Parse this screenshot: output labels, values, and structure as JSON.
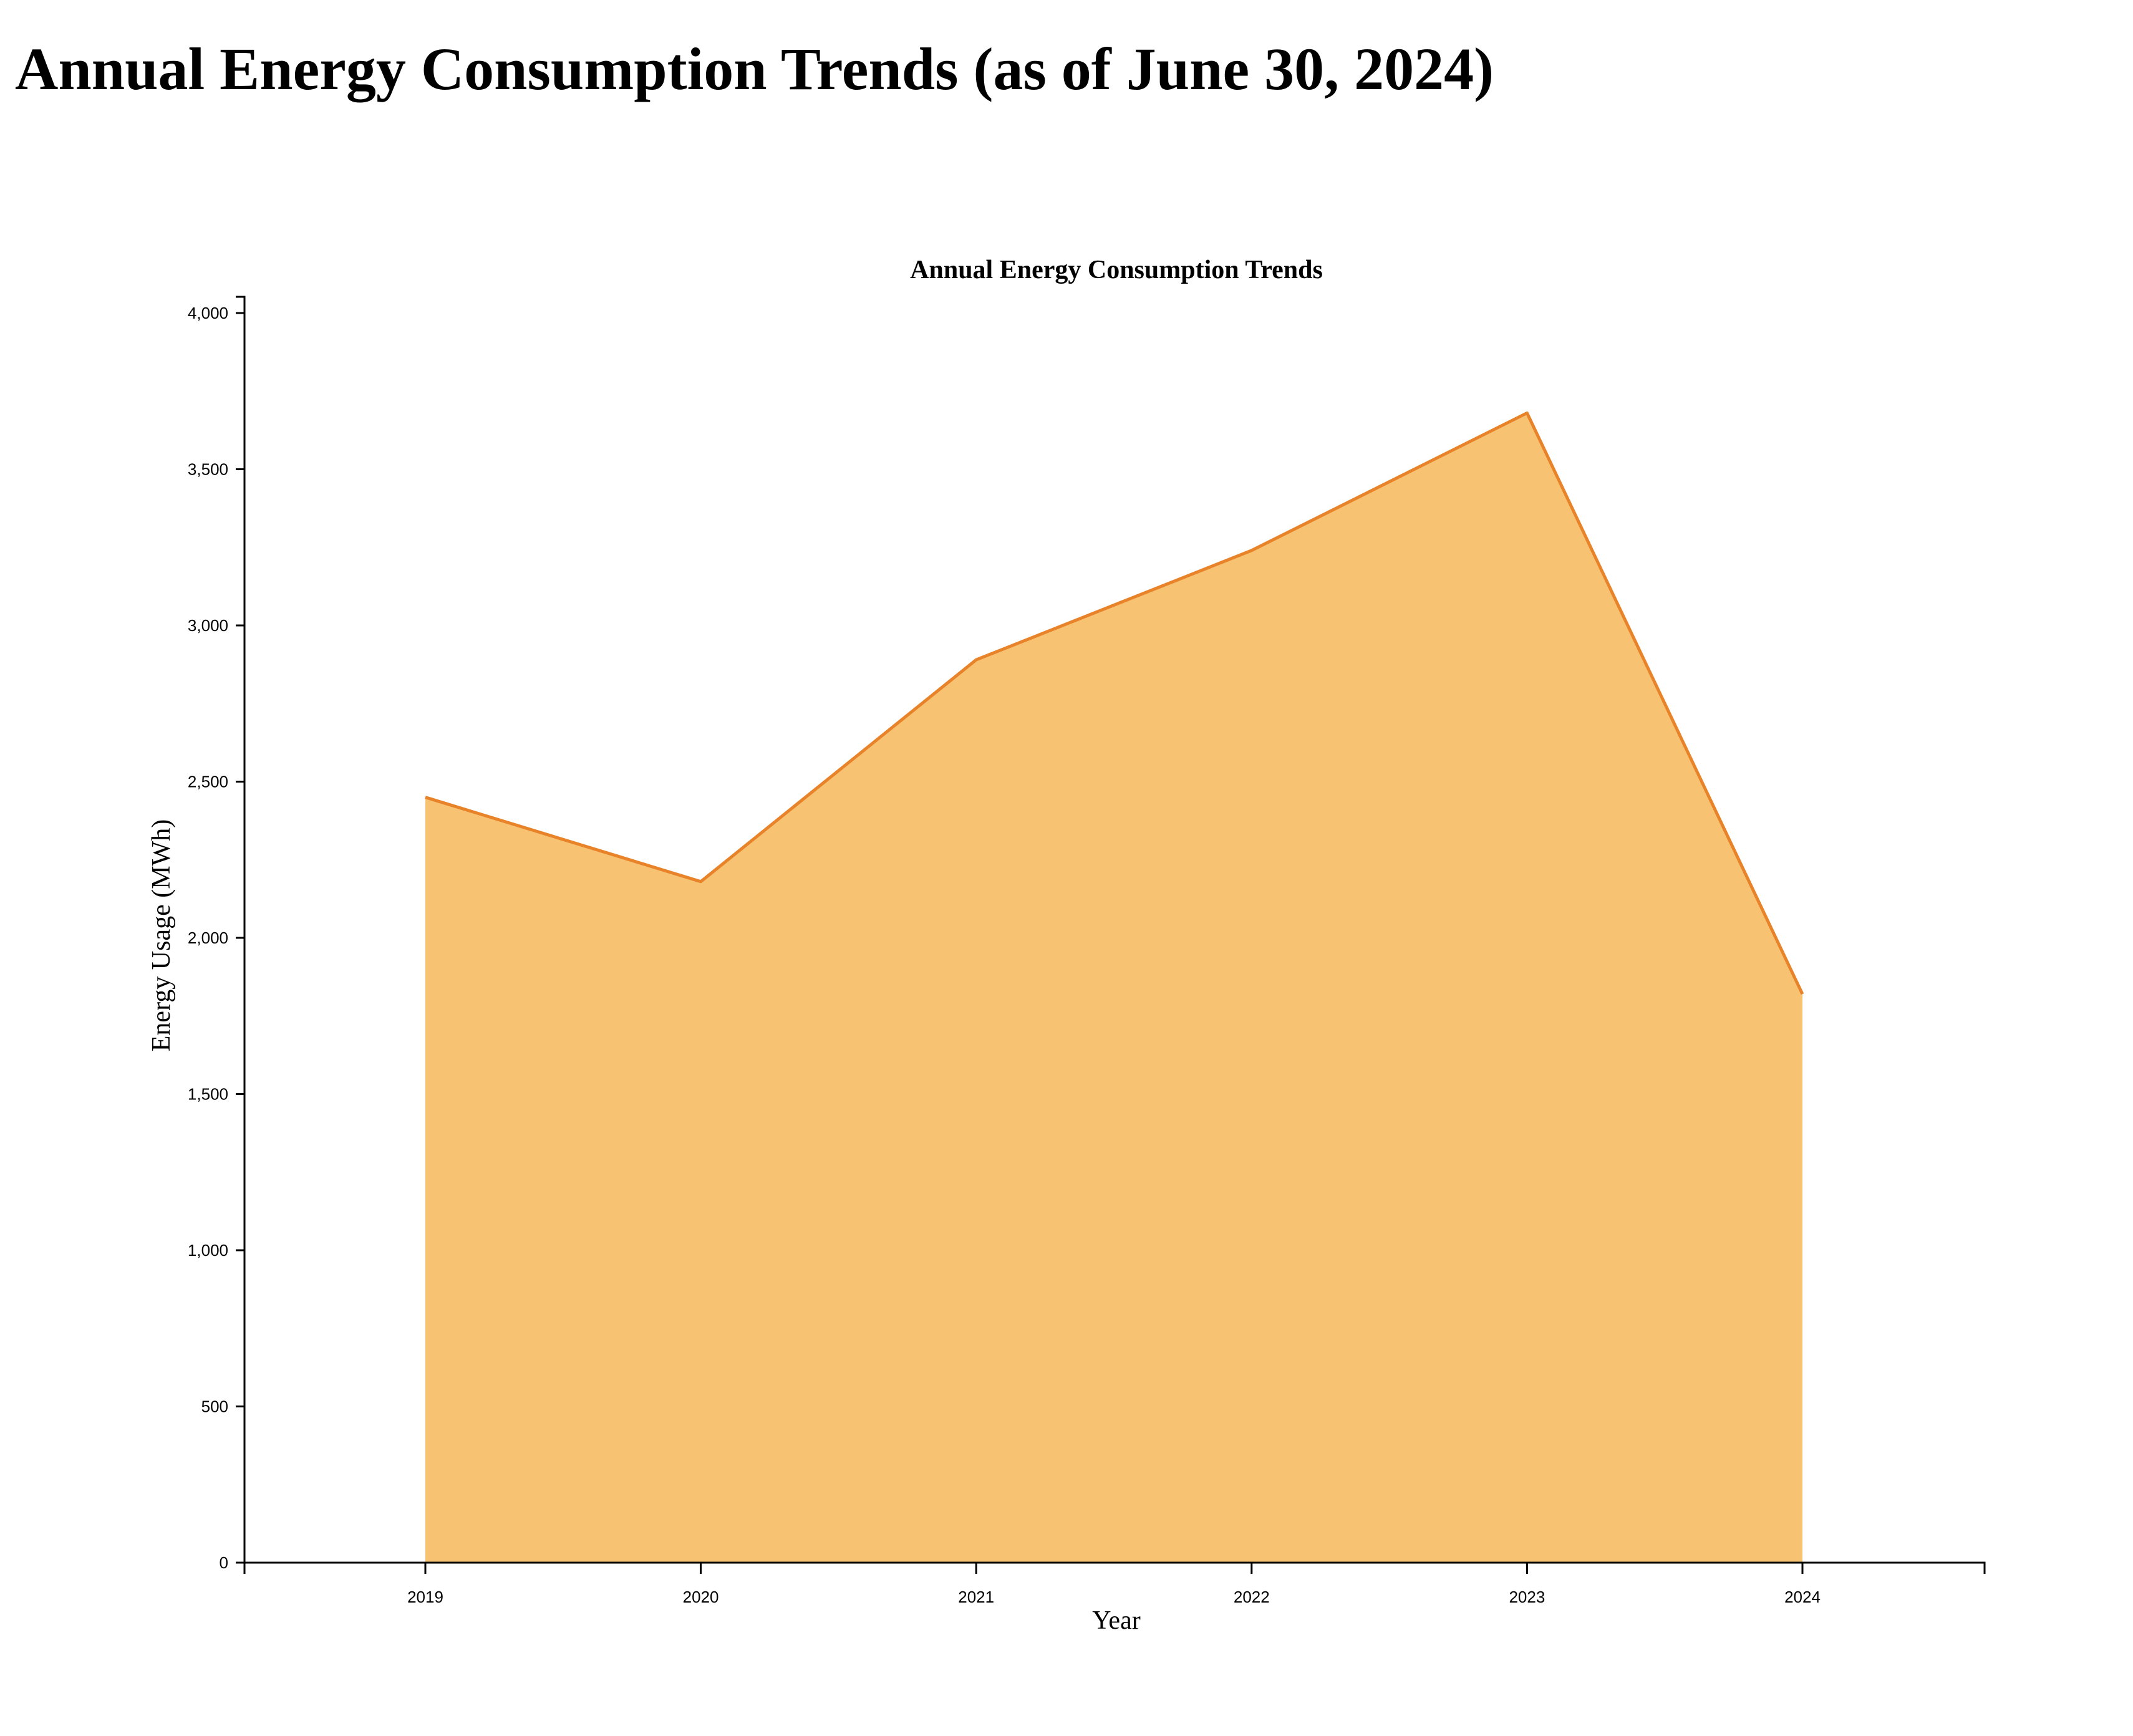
{
  "page": {
    "heading": "Annual Energy Consumption Trends (as of June 30, 2024)"
  },
  "chart_data": {
    "type": "area",
    "title": "Annual Energy Consumption Trends",
    "xlabel": "Year",
    "ylabel": "Energy Usage (MWh)",
    "x": [
      "2019",
      "2020",
      "2021",
      "2022",
      "2023",
      "2024"
    ],
    "values": [
      2450,
      2180,
      2890,
      3240,
      3680,
      1820
    ],
    "ylim": [
      0,
      4050
    ],
    "y_ticks": [
      0,
      500,
      1000,
      1500,
      2000,
      2500,
      3000,
      3500,
      4000
    ],
    "y_tick_labels": [
      "0",
      "500",
      "1,000",
      "1,500",
      "2,000",
      "2,500",
      "3,000",
      "3,500",
      "4,000"
    ],
    "grid": false,
    "legend": "none",
    "colors": {
      "fill": "#f7c373",
      "line": "#e8832a",
      "axis": "#000000"
    }
  }
}
